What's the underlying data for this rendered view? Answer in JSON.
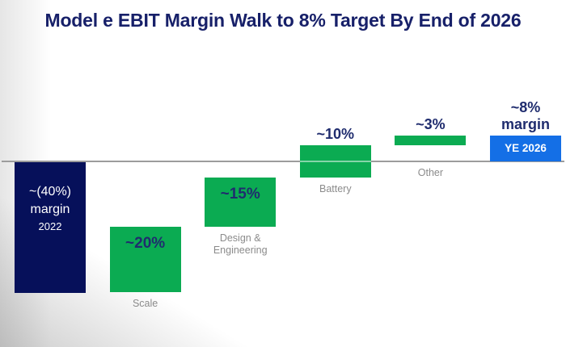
{
  "page": {
    "background": "#ffffff"
  },
  "chart_data": {
    "type": "waterfall",
    "title": "Model e EBIT Margin Walk to 8% Target By End of 2026",
    "unit": "EBIT margin (%)",
    "ylim": [
      -40,
      10
    ],
    "grid": false,
    "zero_line": true,
    "legend": "none",
    "bars": [
      {
        "id": "start-2022",
        "kind": "starting-total",
        "value_pct": -40,
        "from": 0,
        "to": -40,
        "color": "navy",
        "inside_lines": [
          "~(40%)",
          "margin",
          "2022"
        ]
      },
      {
        "id": "scale",
        "kind": "increase",
        "value_pct": 20,
        "from": -40,
        "to": -20,
        "color": "green",
        "value_label": "~20%",
        "value_label_pos": "inside",
        "axis_label": "Scale"
      },
      {
        "id": "design-engineering",
        "kind": "increase",
        "value_pct": 15,
        "from": -20,
        "to": -5,
        "color": "green",
        "value_label": "~15%",
        "value_label_pos": "inside",
        "axis_label": "Design &\nEngineering"
      },
      {
        "id": "battery",
        "kind": "increase",
        "value_pct": 10,
        "from": -5,
        "to": 5,
        "color": "green",
        "value_label": "~10%",
        "value_label_pos": "above",
        "axis_label": "Battery"
      },
      {
        "id": "other",
        "kind": "increase",
        "value_pct": 3,
        "from": 5,
        "to": 8,
        "color": "green",
        "value_label": "~3%",
        "value_label_pos": "above",
        "axis_label": "Other"
      },
      {
        "id": "ye-2026",
        "kind": "ending-total",
        "value_pct": 8,
        "from": 0,
        "to": 8,
        "color": "blue",
        "value_label": "~8%\nmargin",
        "value_label_pos": "above",
        "inside_lines": [
          "YE 2026"
        ]
      }
    ],
    "colors": {
      "navy": "#06105a",
      "green": "#0bab52",
      "blue": "#146fe6",
      "title_navy": "#172069",
      "value_navy": "#1f2c6e",
      "axis_gray": "#9c9c9c",
      "label_gray": "#8b8b8b"
    }
  }
}
